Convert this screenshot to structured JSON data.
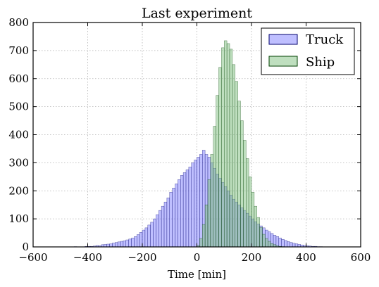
{
  "chart_data": {
    "type": "histogram",
    "title": "Last experiment",
    "xlabel": "Time [min]",
    "ylabel": "",
    "xlim": [
      -600,
      600
    ],
    "ylim": [
      0,
      800
    ],
    "xticks": [
      -600,
      -400,
      -200,
      0,
      200,
      400,
      600
    ],
    "yticks": [
      0,
      100,
      200,
      300,
      400,
      500,
      600,
      700,
      800
    ],
    "grid": true,
    "legend_position": "top-right",
    "bin_width": 10,
    "series": [
      {
        "name": "Truck",
        "color": "#7f7fff",
        "edge_color": "#00006e",
        "bin_start": -450,
        "counts": [
          1,
          0,
          0,
          0,
          2,
          2,
          2,
          3,
          5,
          4,
          8,
          9,
          10,
          11,
          14,
          16,
          18,
          20,
          22,
          25,
          28,
          32,
          37,
          44,
          52,
          60,
          68,
          78,
          88,
          100,
          115,
          130,
          145,
          160,
          175,
          195,
          210,
          225,
          240,
          255,
          265,
          275,
          285,
          300,
          310,
          320,
          330,
          345,
          330,
          320,
          300,
          280,
          260,
          245,
          230,
          215,
          200,
          185,
          170,
          160,
          150,
          140,
          130,
          120,
          110,
          100,
          90,
          82,
          75,
          68,
          60,
          54,
          48,
          42,
          37,
          32,
          27,
          23,
          19,
          16,
          13,
          11,
          9,
          7,
          5,
          4,
          3,
          2,
          2,
          1,
          1
        ]
      },
      {
        "name": "Ship",
        "color": "#7fbf7f",
        "edge_color": "#004000",
        "bin_start": 0,
        "counts": [
          5,
          30,
          80,
          150,
          240,
          330,
          430,
          540,
          640,
          710,
          735,
          725,
          705,
          650,
          590,
          520,
          450,
          380,
          315,
          250,
          195,
          145,
          105,
          70,
          45,
          30,
          20,
          12,
          8,
          4,
          2,
          1
        ]
      }
    ]
  }
}
